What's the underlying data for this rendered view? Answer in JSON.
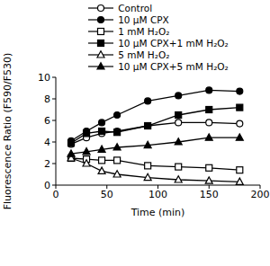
{
  "chart_data": {
    "type": "line",
    "x_label": "Time (min)",
    "y_label": "Fluorescence Ratio (F590/F530)",
    "x": [
      15,
      30,
      45,
      60,
      90,
      120,
      150,
      180
    ],
    "xlim": [
      0,
      200
    ],
    "xticks": [
      0,
      50,
      100,
      150,
      200
    ],
    "ylim": [
      0,
      10
    ],
    "yticks": [
      0,
      2,
      4,
      6,
      8,
      10
    ],
    "legend": "top",
    "series": [
      {
        "name": "Control",
        "color": "#000000",
        "marker": "open_circle",
        "values": [
          3.8,
          4.4,
          4.8,
          5.0,
          5.5,
          5.8,
          5.8,
          5.7
        ]
      },
      {
        "name": "10 µM CPX",
        "color": "#000000",
        "marker": "circle",
        "values": [
          4.1,
          5.0,
          5.8,
          6.5,
          7.8,
          8.3,
          8.8,
          8.7
        ]
      },
      {
        "name": "1 mM H₂O₂",
        "color": "#000000",
        "marker": "open_square",
        "values": [
          2.5,
          2.4,
          2.3,
          2.3,
          1.8,
          1.7,
          1.6,
          1.4
        ]
      },
      {
        "name": "10 µM CPX+1 mM H₂O₂",
        "color": "#000000",
        "marker": "square",
        "values": [
          3.9,
          4.8,
          5.0,
          4.9,
          5.5,
          6.5,
          7.0,
          7.2
        ]
      },
      {
        "name": "5 mM H₂O₂",
        "color": "#000000",
        "marker": "open_triangle",
        "values": [
          2.5,
          2.0,
          1.3,
          1.0,
          0.7,
          0.5,
          0.4,
          0.3
        ]
      },
      {
        "name": "10 µM CPX+5 mM H₂O₂",
        "color": "#000000",
        "marker": "triangle",
        "values": [
          2.9,
          3.1,
          3.3,
          3.5,
          3.7,
          4.0,
          4.4,
          4.4
        ]
      }
    ]
  }
}
